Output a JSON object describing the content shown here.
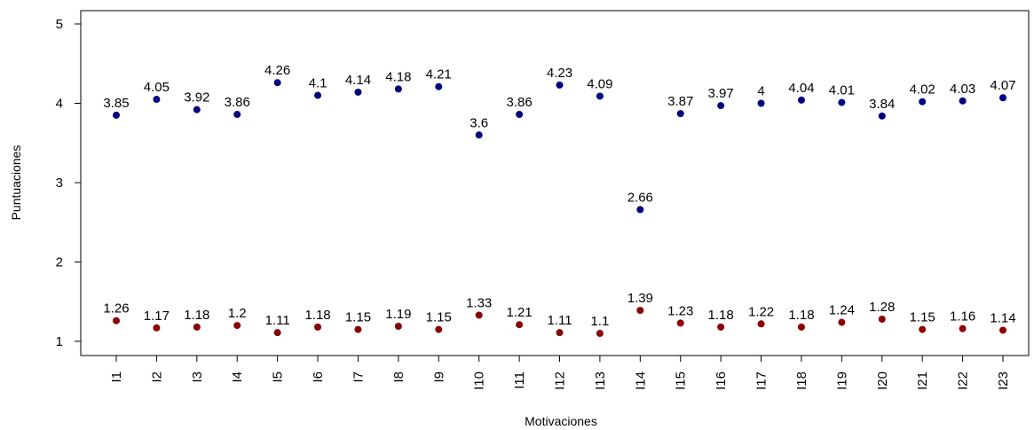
{
  "chart_data": {
    "type": "scatter",
    "title": "",
    "xlabel": "Motivaciones",
    "ylabel": "Puntuaciones",
    "ylim": [
      1,
      5
    ],
    "yticks": [
      1,
      2,
      3,
      4,
      5
    ],
    "grid": false,
    "categories": [
      "I1",
      "I2",
      "I3",
      "I4",
      "I5",
      "I6",
      "I7",
      "I8",
      "I9",
      "I10",
      "I11",
      "I12",
      "I13",
      "I14",
      "I15",
      "I16",
      "I17",
      "I18",
      "I19",
      "I20",
      "I21",
      "I22",
      "I23"
    ],
    "series": [
      {
        "color": "#00007F",
        "values": [
          3.85,
          4.05,
          3.92,
          3.86,
          4.26,
          4.1,
          4.14,
          4.18,
          4.21,
          3.6,
          3.86,
          4.23,
          4.09,
          2.66,
          3.87,
          3.97,
          4,
          4.04,
          4.01,
          3.84,
          4.02,
          4.03,
          4.07
        ],
        "labels": [
          "3.85",
          "4.05",
          "3.92",
          "3.86",
          "4.26",
          "4.1",
          "4.14",
          "4.18",
          "4.21",
          "3.6",
          "3.86",
          "4.23",
          "4.09",
          "2.66",
          "3.87",
          "3.97",
          "4",
          "4.04",
          "4.01",
          "3.84",
          "4.02",
          "4.03",
          "4.07"
        ]
      },
      {
        "color": "#8B0000",
        "values": [
          1.26,
          1.17,
          1.18,
          1.2,
          1.11,
          1.18,
          1.15,
          1.19,
          1.15,
          1.33,
          1.21,
          1.11,
          1.1,
          1.39,
          1.23,
          1.18,
          1.22,
          1.18,
          1.24,
          1.28,
          1.15,
          1.16,
          1.14
        ],
        "labels": [
          "1.26",
          "1.17",
          "1.18",
          "1.2",
          "1.11",
          "1.18",
          "1.15",
          "1.19",
          "1.15",
          "1.33",
          "1.21",
          "1.11",
          "1.1",
          "1.39",
          "1.23",
          "1.18",
          "1.22",
          "1.18",
          "1.24",
          "1.28",
          "1.15",
          "1.16",
          "1.14"
        ]
      }
    ]
  }
}
